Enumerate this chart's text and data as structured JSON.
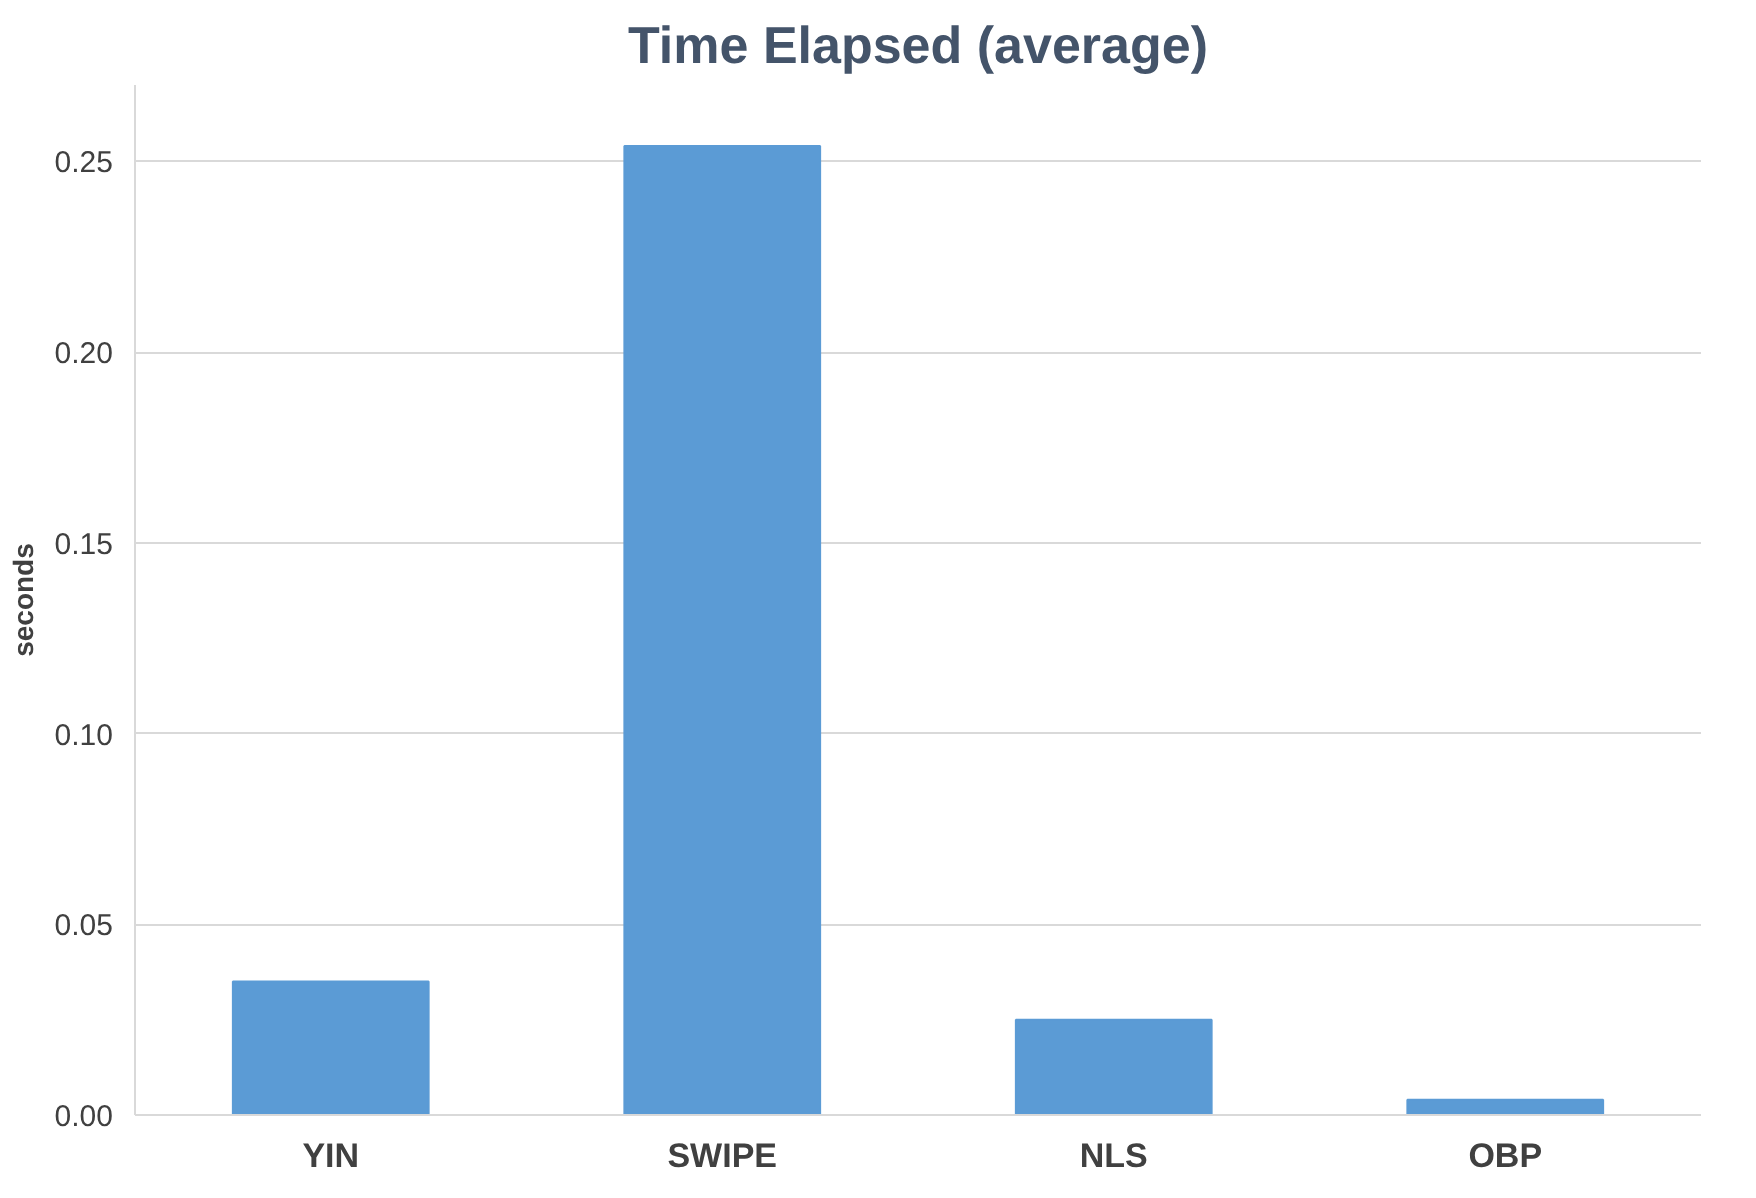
{
  "chart_data": {
    "type": "bar",
    "title": "Time Elapsed (average)",
    "ylabel": "seconds",
    "categories": [
      "YIN",
      "SWIPE",
      "NLS",
      "OBP"
    ],
    "values": [
      0.035,
      0.254,
      0.025,
      0.004
    ],
    "color": "#5b9bd5",
    "ylim": [
      0,
      0.27
    ],
    "yticks": [
      {
        "value": 0,
        "label": "0.00"
      },
      {
        "value": 0.05,
        "label": "0.05"
      },
      {
        "value": 0.1,
        "label": "0.10"
      },
      {
        "value": 0.15,
        "label": "0.15"
      },
      {
        "value": 0.2,
        "label": "0.20"
      },
      {
        "value": 0.25,
        "label": "0.25"
      }
    ],
    "grid": "y"
  }
}
